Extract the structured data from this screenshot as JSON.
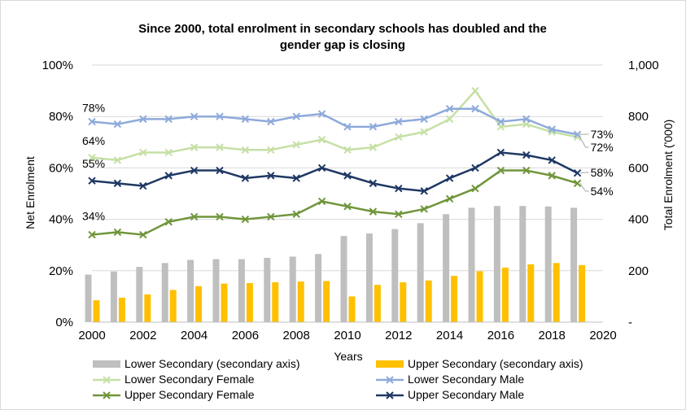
{
  "chart_data": {
    "type": "bar-line-combo",
    "title": "Since 2000, total enrolment in secondary schools has doubled and the gender gap is closing",
    "title_lines": [
      "Since 2000, total enrolment in secondary schools has doubled and the",
      "gender gap is closing"
    ],
    "xlabel": "Years",
    "ylabel_left": "Net Enrolment",
    "ylabel_right": "Total Enrolment ('000)",
    "xlim": [
      2000,
      2020
    ],
    "x_ticks": [
      "2000",
      "2002",
      "2004",
      "2006",
      "2008",
      "2010",
      "2012",
      "2014",
      "2016",
      "2018",
      "2020"
    ],
    "ylim_left": [
      0,
      100
    ],
    "y_ticks_left": [
      "0%",
      "20%",
      "40%",
      "60%",
      "80%",
      "100%"
    ],
    "ylim_right": [
      0,
      1000
    ],
    "y_ticks_right": [
      "-",
      "200",
      "400",
      "600",
      "800",
      "1,000"
    ],
    "grid": true,
    "legend_position": "bottom",
    "x": [
      2000,
      2001,
      2002,
      2003,
      2004,
      2005,
      2006,
      2007,
      2008,
      2009,
      2010,
      2011,
      2012,
      2013,
      2014,
      2015,
      2016,
      2017,
      2018,
      2019
    ],
    "bar_series": [
      {
        "name": "Lower Secondary (secondary axis)",
        "color": "#bfbfbf",
        "values": [
          185,
          197,
          215,
          230,
          242,
          245,
          245,
          250,
          255,
          265,
          335,
          345,
          362,
          385,
          420,
          445,
          452,
          452,
          450,
          445
        ]
      },
      {
        "name": "Upper Secondary (secondary axis)",
        "color": "#ffc000",
        "values": [
          85,
          95,
          108,
          125,
          140,
          150,
          152,
          155,
          158,
          160,
          100,
          145,
          155,
          162,
          180,
          198,
          212,
          225,
          230,
          222
        ]
      }
    ],
    "line_series": [
      {
        "name": "Lower Secondary Female",
        "color": "#c5e0a5",
        "values": [
          64,
          63,
          66,
          66,
          68,
          68,
          67,
          67,
          69,
          71,
          67,
          68,
          72,
          74,
          79,
          90,
          76,
          77,
          74,
          72
        ]
      },
      {
        "name": "Lower Secondary Male",
        "color": "#8eaadb",
        "values": [
          78,
          77,
          79,
          79,
          80,
          80,
          79,
          78,
          80,
          81,
          76,
          76,
          78,
          79,
          83,
          83,
          78,
          79,
          75,
          73
        ]
      },
      {
        "name": "Upper Secondary Female",
        "color": "#70953a",
        "values": [
          34,
          35,
          34,
          39,
          41,
          41,
          40,
          41,
          42,
          47,
          45,
          43,
          42,
          44,
          48,
          52,
          59,
          59,
          57,
          54
        ]
      },
      {
        "name": "Upper Secondary Male",
        "color": "#1f3864",
        "values": [
          55,
          54,
          53,
          57,
          59,
          59,
          56,
          57,
          56,
          60,
          57,
          54,
          52,
          51,
          56,
          60,
          66,
          65,
          63,
          58
        ]
      }
    ],
    "legend_order": [
      "Lower Secondary (secondary axis)",
      "Upper Secondary (secondary axis)",
      "Lower Secondary Female",
      "Lower Secondary Male",
      "Upper Secondary Female",
      "Upper Secondary Male"
    ],
    "annotations": {
      "start_labels": [
        {
          "text": "78%",
          "series": "Lower Secondary Male"
        },
        {
          "text": "64%",
          "series": "Lower Secondary Female"
        },
        {
          "text": "55%",
          "series": "Upper Secondary Male"
        },
        {
          "text": "34%",
          "series": "Upper Secondary Female"
        }
      ],
      "end_labels": [
        {
          "text": "73%",
          "series": "Lower Secondary Male"
        },
        {
          "text": "72%",
          "series": "Lower Secondary Female"
        },
        {
          "text": "58%",
          "series": "Upper Secondary Male"
        },
        {
          "text": "54%",
          "series": "Upper Secondary Female"
        }
      ]
    }
  }
}
